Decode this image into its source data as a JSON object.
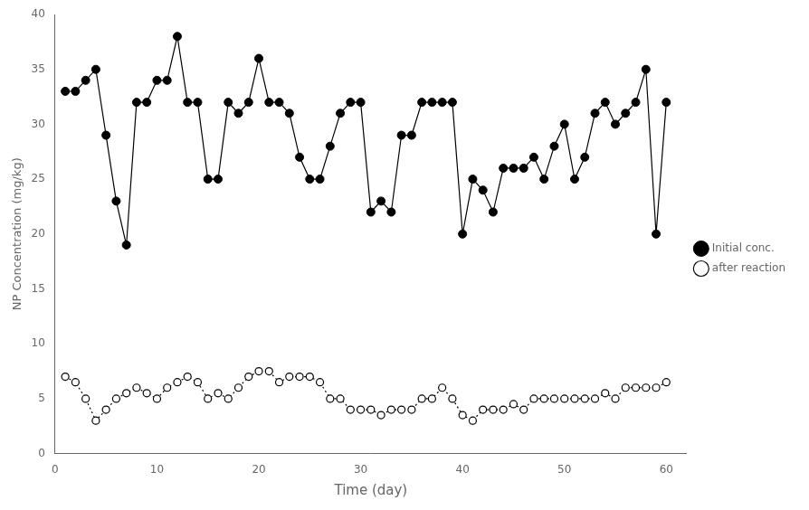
{
  "chart_data": {
    "type": "line",
    "xlabel": "Time (day)",
    "ylabel": "NP Concentration (mg/kg)",
    "xlim": [
      0,
      62
    ],
    "ylim": [
      0,
      40
    ],
    "xticks": [
      0,
      10,
      20,
      30,
      40,
      50,
      60
    ],
    "yticks": [
      0,
      5,
      10,
      15,
      20,
      25,
      30,
      35,
      40
    ],
    "grid": false,
    "legend": "right",
    "series": [
      {
        "name": "Initial conc.",
        "color": "#000000",
        "line_style": "solid",
        "marker": "circle",
        "x": [
          1,
          2,
          3,
          4,
          5,
          6,
          7,
          8,
          9,
          10,
          11,
          12,
          13,
          14,
          15,
          16,
          17,
          18,
          19,
          20,
          21,
          22,
          23,
          24,
          25,
          26,
          27,
          28,
          29,
          30,
          31,
          32,
          33,
          34,
          35,
          36,
          37,
          38,
          39,
          40,
          41,
          42,
          43,
          44,
          45,
          46,
          47,
          48,
          49,
          50,
          51,
          52,
          53,
          54,
          55,
          56,
          57,
          58,
          59,
          60
        ],
        "values": [
          33,
          33,
          34,
          35,
          29,
          23,
          19,
          32,
          32,
          34,
          34,
          38,
          32,
          32,
          25,
          25,
          32,
          31,
          32,
          36,
          32,
          32,
          31,
          27,
          25,
          25,
          28,
          31,
          32,
          32,
          22,
          23,
          22,
          29,
          29,
          32,
          32,
          32,
          32,
          20,
          25,
          24,
          22,
          26,
          26,
          26,
          27,
          25,
          28,
          30,
          25,
          27,
          31,
          32,
          30,
          31,
          32,
          35,
          20,
          32
        ]
      },
      {
        "name": "after reaction",
        "color": "#000000",
        "line_style": "dotted",
        "marker": "open_circle",
        "x": [
          1,
          2,
          3,
          4,
          5,
          6,
          7,
          8,
          9,
          10,
          11,
          12,
          13,
          14,
          15,
          16,
          17,
          18,
          19,
          20,
          21,
          22,
          23,
          24,
          25,
          26,
          27,
          28,
          29,
          30,
          31,
          32,
          33,
          34,
          35,
          36,
          37,
          38,
          39,
          40,
          41,
          42,
          43,
          44,
          45,
          46,
          47,
          48,
          49,
          50,
          51,
          52,
          53,
          54,
          55,
          56,
          57,
          58,
          59,
          60
        ],
        "values": [
          7,
          6.5,
          5,
          3,
          4,
          5,
          5.5,
          6,
          5.5,
          5,
          6,
          6.5,
          7,
          6.5,
          5,
          5.5,
          5,
          6,
          7,
          7.5,
          7.5,
          6.5,
          7,
          7,
          7,
          6.5,
          5,
          5,
          4,
          4,
          4,
          3.5,
          4,
          4,
          4,
          5,
          5,
          6,
          5,
          3.5,
          3,
          4,
          4,
          4,
          4.5,
          4,
          5,
          5,
          5,
          5,
          5,
          5,
          5,
          5.5,
          5,
          6,
          6,
          6,
          6,
          6.5
        ]
      }
    ]
  }
}
